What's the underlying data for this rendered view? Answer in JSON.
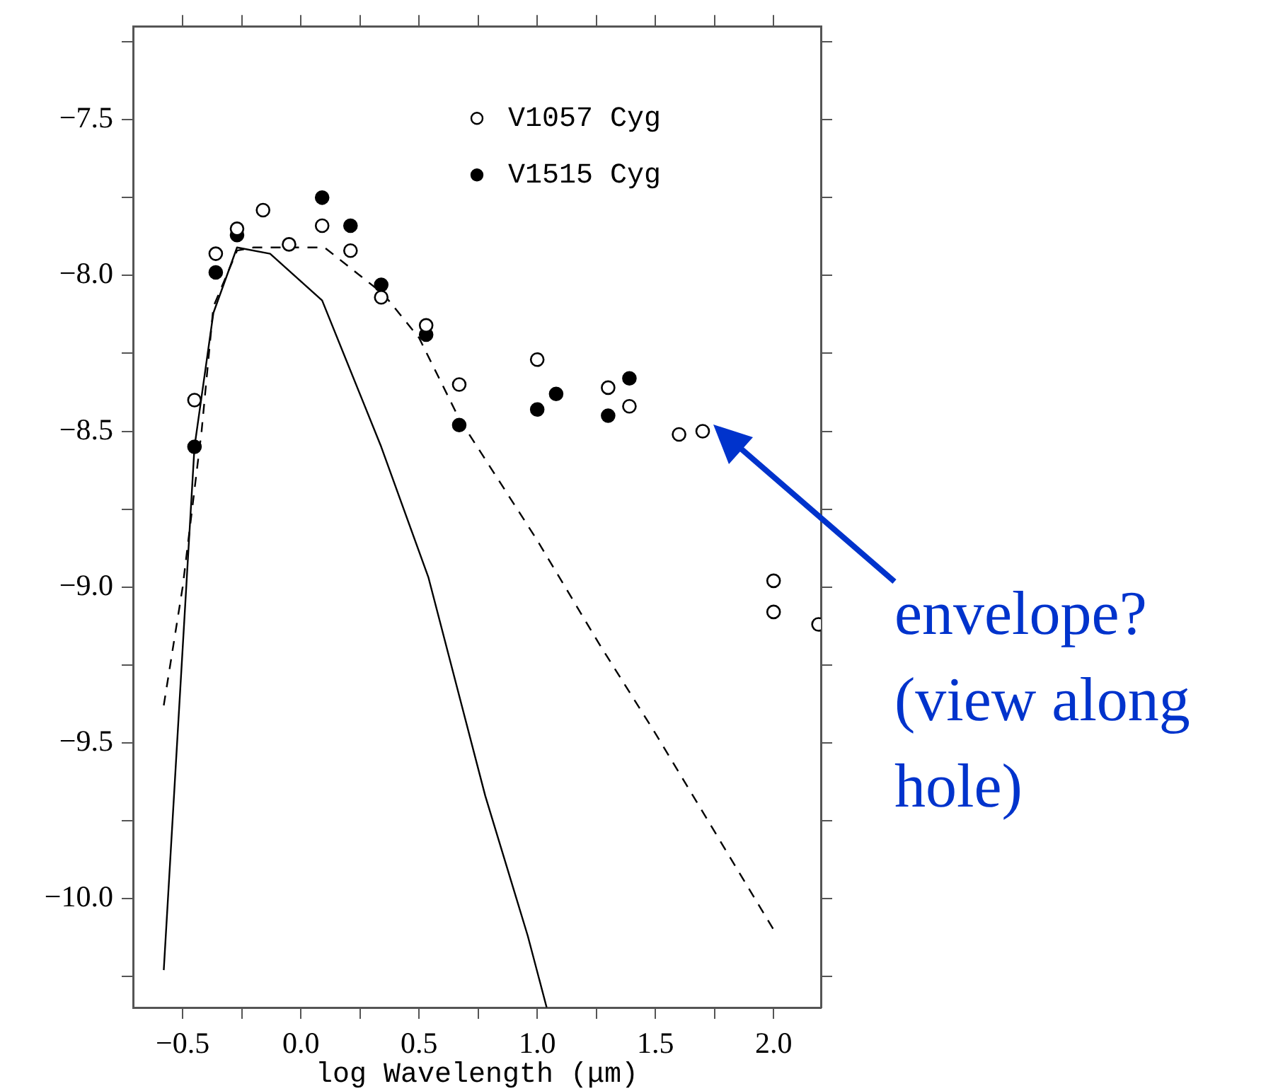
{
  "chart_data": {
    "type": "scatter",
    "xlabel": "log Wavelength (μm)",
    "xlim": [
      -0.71,
      2.2
    ],
    "ylim": [
      -10.35,
      -7.2
    ],
    "xticks": [
      {
        "value": -0.5,
        "label": "−0.5"
      },
      {
        "value": -0.25,
        "label": null
      },
      {
        "value": 0,
        "label": "0.0"
      },
      {
        "value": 0.25,
        "label": null
      },
      {
        "value": 0.5,
        "label": "0.5"
      },
      {
        "value": 0.75,
        "label": null
      },
      {
        "value": 1,
        "label": "1.0"
      },
      {
        "value": 1.25,
        "label": null
      },
      {
        "value": 1.5,
        "label": "1.5"
      },
      {
        "value": 1.75,
        "label": null
      },
      {
        "value": 2,
        "label": "2.0"
      }
    ],
    "yticks": [
      {
        "value": -7.25,
        "label": null
      },
      {
        "value": -7.5,
        "label": "−7.5"
      },
      {
        "value": -7.75,
        "label": null
      },
      {
        "value": -8,
        "label": "−8.0"
      },
      {
        "value": -8.25,
        "label": null
      },
      {
        "value": -8.5,
        "label": "−8.5"
      },
      {
        "value": -8.75,
        "label": null
      },
      {
        "value": -9,
        "label": "−9.0"
      },
      {
        "value": -9.25,
        "label": null
      },
      {
        "value": -9.5,
        "label": "−9.5"
      },
      {
        "value": -9.75,
        "label": null
      },
      {
        "value": -10,
        "label": "−10.0"
      },
      {
        "value": -10.25,
        "label": null
      }
    ],
    "grid": false,
    "legend": "top right",
    "series": [
      {
        "name": "V1057 Cyg",
        "type": "scatter",
        "marker": "circle",
        "color": "#000000",
        "x": [
          -0.45,
          -0.36,
          -0.27,
          -0.16,
          -0.05,
          0.09,
          0.21,
          0.34,
          0.53,
          0.67,
          1.0,
          1.3,
          1.39,
          1.6,
          1.7,
          2.0,
          2.0,
          2.19
        ],
        "values": [
          -8.4,
          -7.93,
          -7.85,
          -7.79,
          -7.9,
          -7.84,
          -7.92,
          -8.07,
          -8.16,
          -8.35,
          -8.27,
          -8.36,
          -8.42,
          -8.51,
          -8.5,
          -8.98,
          -9.08,
          -9.12
        ]
      },
      {
        "name": "V1515 Cyg",
        "type": "scatter",
        "marker": "circle",
        "color": "#000000",
        "x": [
          -0.45,
          -0.36,
          -0.27,
          0.09,
          0.21,
          0.34,
          0.53,
          0.67,
          1.0,
          1.08,
          1.3,
          1.39
        ],
        "values": [
          -8.55,
          -7.99,
          -7.87,
          -7.75,
          -7.84,
          -8.03,
          -8.19,
          -8.48,
          -8.43,
          -8.38,
          -8.45,
          -8.33
        ]
      },
      {
        "type": "line",
        "marker": "none",
        "line_style": "dashed",
        "color": "#000000",
        "x": [
          -0.58,
          -0.5,
          -0.42,
          -0.37,
          -0.27,
          -0.2,
          0.1,
          0.35,
          0.5,
          0.67,
          1.0,
          1.26,
          1.5,
          2.0
        ],
        "values": [
          -9.38,
          -9.0,
          -8.5,
          -8.1,
          -7.92,
          -7.91,
          -7.91,
          -8.06,
          -8.2,
          -8.46,
          -8.85,
          -9.18,
          -9.47,
          -10.1
        ]
      },
      {
        "type": "line",
        "marker": "none",
        "line_style": "solid",
        "color": "#000000",
        "x": [
          -0.58,
          -0.45,
          -0.37,
          -0.27,
          -0.13,
          0.09,
          0.34,
          0.54,
          0.78,
          0.96,
          1.04
        ],
        "values": [
          -10.23,
          -8.55,
          -8.12,
          -7.91,
          -7.93,
          -8.08,
          -8.55,
          -8.97,
          -9.67,
          -10.12,
          -10.35
        ]
      }
    ],
    "annotations": [
      "envelope?\n(view along\nhole)"
    ]
  }
}
